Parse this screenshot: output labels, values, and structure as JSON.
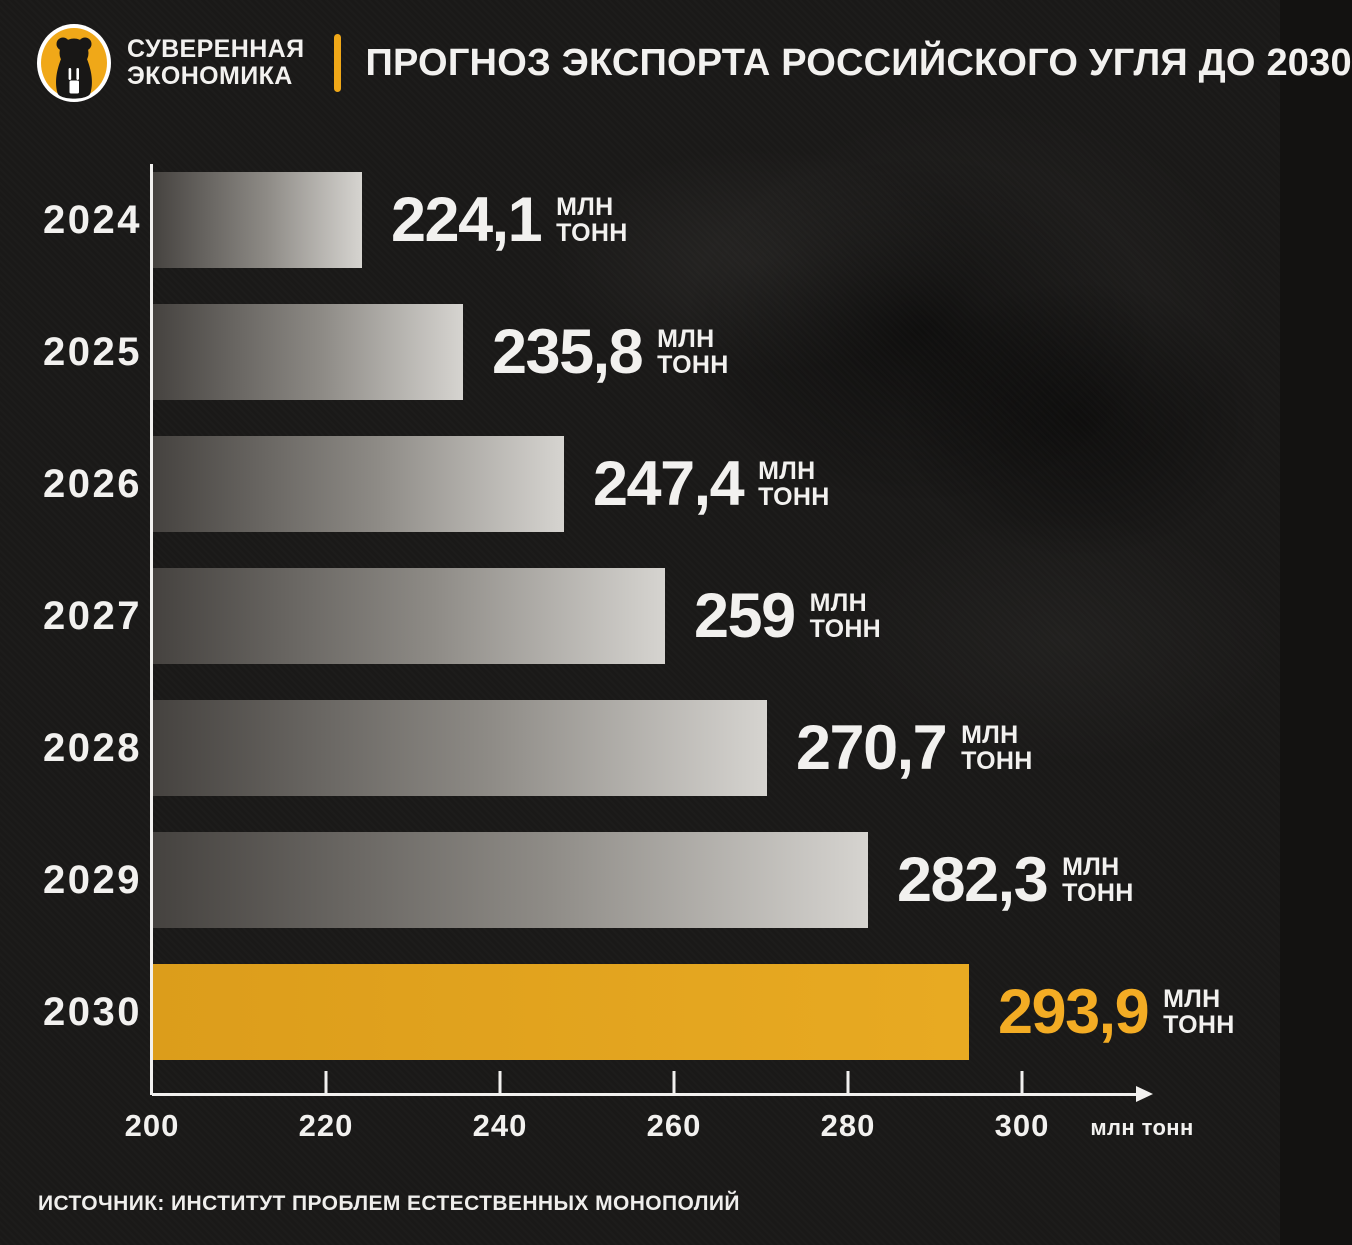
{
  "header": {
    "brand": {
      "line1": "СУВЕРЕННАЯ",
      "line2": "ЭКОНОМИКА",
      "accent": "#F0A818"
    },
    "title": "ПРОГНОЗ ЭКСПОРТА РОССИЙСКОГО УГЛЯ ДО 2030"
  },
  "chart_data": {
    "type": "bar",
    "orientation": "horizontal",
    "title": "ПРОГНОЗ ЭКСПОРТА РОССИЙСКОГО УГЛЯ ДО 2030",
    "categories": [
      "2024",
      "2025",
      "2026",
      "2027",
      "2028",
      "2029",
      "2030"
    ],
    "values": [
      224.1,
      235.8,
      247.4,
      259,
      270.7,
      282.3,
      293.9
    ],
    "value_labels": [
      "224,1",
      "235,8",
      "247,4",
      "259",
      "270,7",
      "282,3",
      "293,9"
    ],
    "unit_lines": [
      "МЛН",
      "ТОНН"
    ],
    "xlabel": "млн тонн",
    "x_ticks": [
      200,
      220,
      240,
      260,
      280,
      300
    ],
    "xlim": [
      200,
      315
    ],
    "grid": false,
    "legend": false,
    "highlight_index": 6,
    "colors": {
      "bar_gradient_dark": "#45423F",
      "bar_gradient_light": "#D6D4D0",
      "highlight_bar": "#E2A21D",
      "highlight_value_text": "#F3AC24",
      "axis": "#F2F1EF",
      "background": "#1A1918"
    }
  },
  "footer": {
    "source": "ИСТОЧНИК: ИНСТИТУТ ПРОБЛЕМ ЕСТЕСТВЕННЫХ МОНОПОЛИЙ"
  }
}
